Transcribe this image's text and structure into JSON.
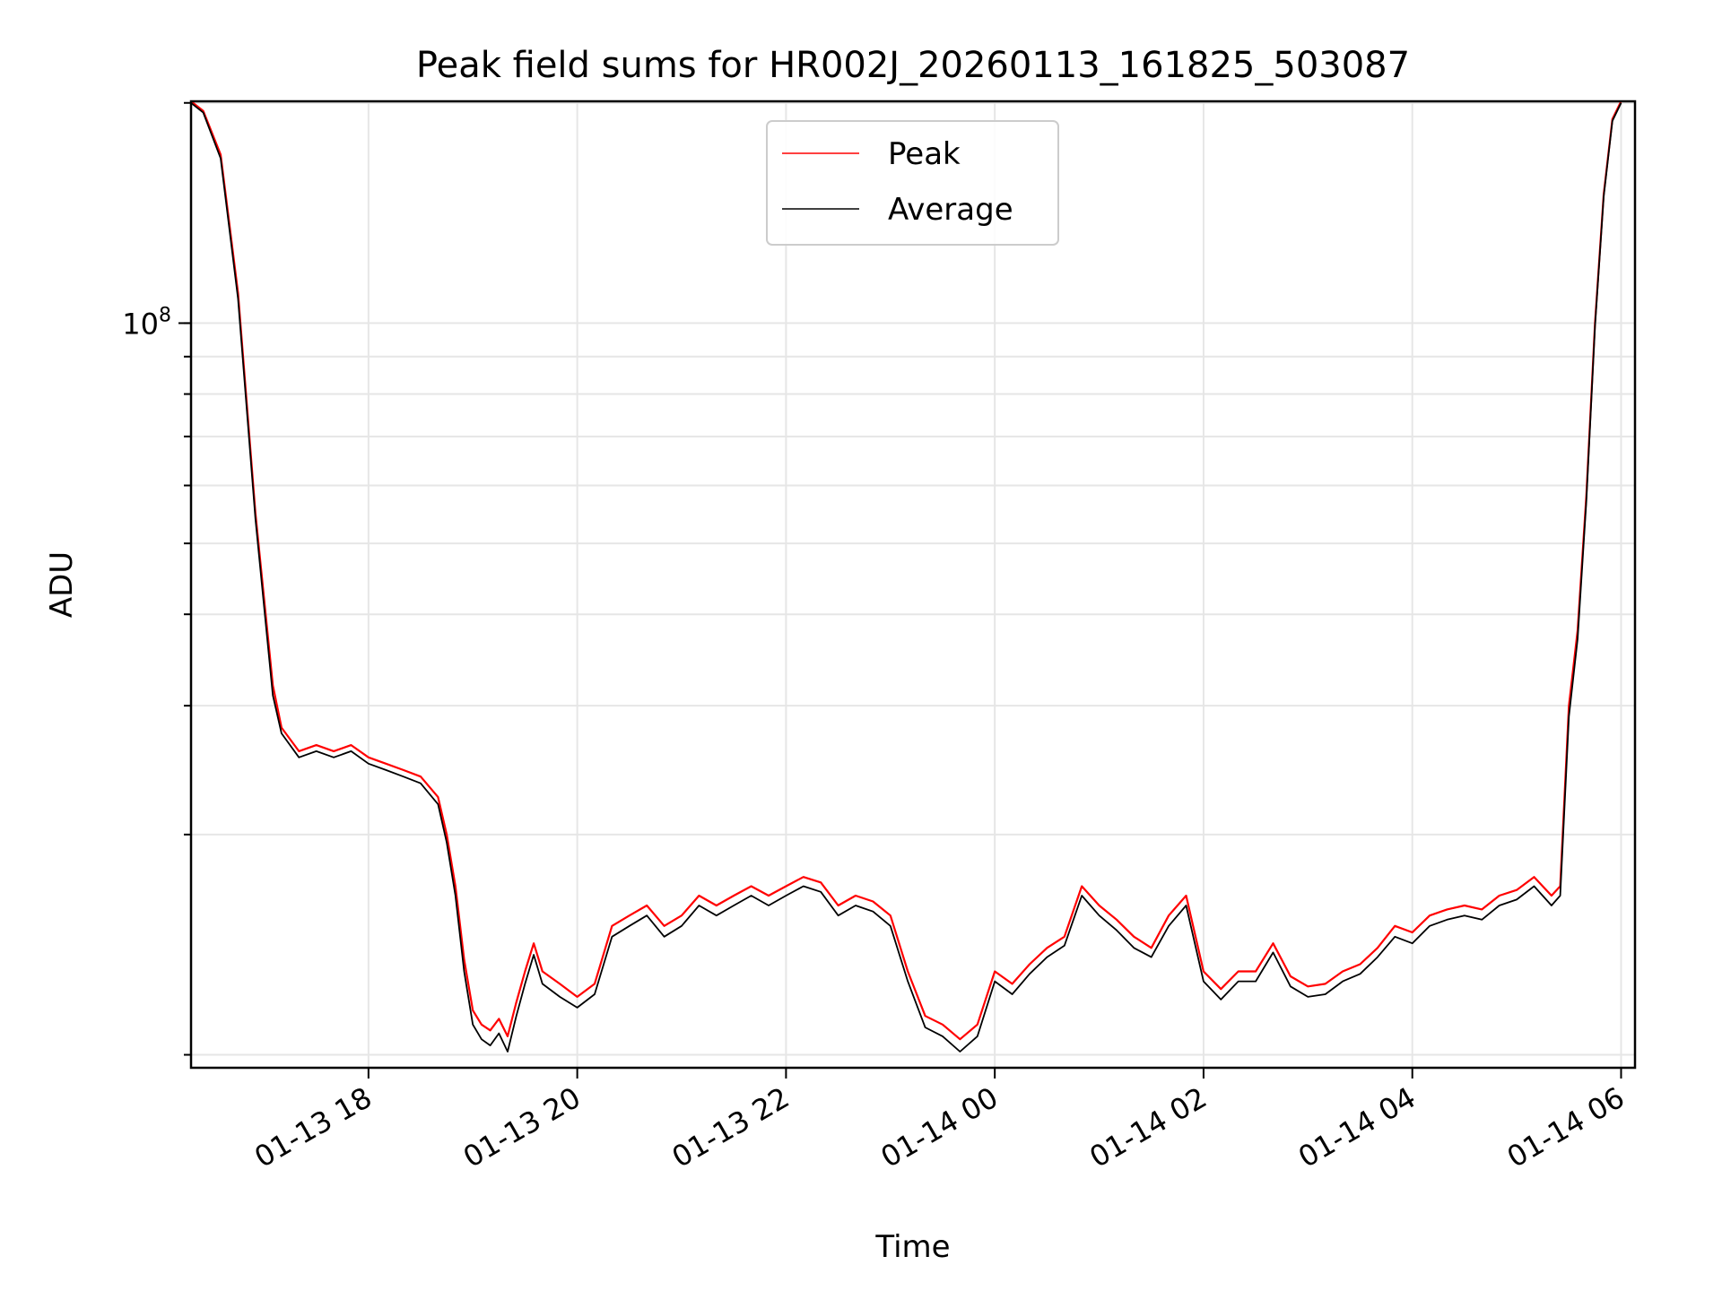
{
  "chart_data": {
    "type": "line",
    "title": "Peak field sums for HR002J_20260113_161825_503087",
    "xlabel": "Time",
    "ylabel": "ADU",
    "yscale": "log",
    "grid": true,
    "legend_position": "top-center",
    "x_range": [
      "2026-01-13 16:18",
      "2026-01-14 06:08"
    ],
    "ylim": [
      9600000,
      201000000
    ],
    "x_ticks": [
      {
        "value": "2026-01-13 18:00",
        "label": "01-13 18"
      },
      {
        "value": "2026-01-13 20:00",
        "label": "01-13 20"
      },
      {
        "value": "2026-01-13 22:00",
        "label": "01-13 22"
      },
      {
        "value": "2026-01-14 00:00",
        "label": "01-14 00"
      },
      {
        "value": "2026-01-14 02:00",
        "label": "01-14 02"
      },
      {
        "value": "2026-01-14 04:00",
        "label": "01-14 04"
      },
      {
        "value": "2026-01-14 06:00",
        "label": "01-14 06"
      }
    ],
    "y_major_ticks": [
      {
        "value": 100000000,
        "base": "10",
        "exponent": "8"
      }
    ],
    "series": [
      {
        "name": "Peak",
        "color": "#ff0000",
        "x": [
          "2026-01-13 16:18",
          "2026-01-13 16:25",
          "2026-01-13 16:35",
          "2026-01-13 16:45",
          "2026-01-13 16:55",
          "2026-01-13 17:05",
          "2026-01-13 17:10",
          "2026-01-13 17:20",
          "2026-01-13 17:30",
          "2026-01-13 17:40",
          "2026-01-13 17:50",
          "2026-01-13 18:00",
          "2026-01-13 18:10",
          "2026-01-13 18:20",
          "2026-01-13 18:30",
          "2026-01-13 18:40",
          "2026-01-13 18:45",
          "2026-01-13 18:50",
          "2026-01-13 18:55",
          "2026-01-13 19:00",
          "2026-01-13 19:05",
          "2026-01-13 19:10",
          "2026-01-13 19:15",
          "2026-01-13 19:20",
          "2026-01-13 19:25",
          "2026-01-13 19:30",
          "2026-01-13 19:35",
          "2026-01-13 19:40",
          "2026-01-13 19:50",
          "2026-01-13 20:00",
          "2026-01-13 20:10",
          "2026-01-13 20:20",
          "2026-01-13 20:30",
          "2026-01-13 20:40",
          "2026-01-13 20:50",
          "2026-01-13 21:00",
          "2026-01-13 21:10",
          "2026-01-13 21:20",
          "2026-01-13 21:30",
          "2026-01-13 21:40",
          "2026-01-13 21:50",
          "2026-01-13 22:00",
          "2026-01-13 22:10",
          "2026-01-13 22:20",
          "2026-01-13 22:30",
          "2026-01-13 22:40",
          "2026-01-13 22:50",
          "2026-01-13 23:00",
          "2026-01-13 23:10",
          "2026-01-13 23:20",
          "2026-01-13 23:30",
          "2026-01-13 23:40",
          "2026-01-13 23:50",
          "2026-01-14 00:00",
          "2026-01-14 00:10",
          "2026-01-14 00:20",
          "2026-01-14 00:30",
          "2026-01-14 00:40",
          "2026-01-14 00:50",
          "2026-01-14 01:00",
          "2026-01-14 01:10",
          "2026-01-14 01:20",
          "2026-01-14 01:30",
          "2026-01-14 01:40",
          "2026-01-14 01:50",
          "2026-01-14 02:00",
          "2026-01-14 02:10",
          "2026-01-14 02:20",
          "2026-01-14 02:30",
          "2026-01-14 02:40",
          "2026-01-14 02:50",
          "2026-01-14 03:00",
          "2026-01-14 03:10",
          "2026-01-14 03:20",
          "2026-01-14 03:30",
          "2026-01-14 03:40",
          "2026-01-14 03:50",
          "2026-01-14 04:00",
          "2026-01-14 04:10",
          "2026-01-14 04:20",
          "2026-01-14 04:30",
          "2026-01-14 04:40",
          "2026-01-14 04:50",
          "2026-01-14 05:00",
          "2026-01-14 05:10",
          "2026-01-14 05:20",
          "2026-01-14 05:25",
          "2026-01-14 05:30",
          "2026-01-14 05:35",
          "2026-01-14 05:40",
          "2026-01-14 05:45",
          "2026-01-14 05:50",
          "2026-01-14 05:55",
          "2026-01-14 06:00"
        ],
        "values": [
          201000000,
          195000000,
          170000000,
          110000000,
          55000000,
          32000000,
          28000000,
          26000000,
          26500000,
          26000000,
          26500000,
          25500000,
          25000000,
          24500000,
          24000000,
          22500000,
          20000000,
          17000000,
          13500000,
          11500000,
          11000000,
          10800000,
          11200000,
          10600000,
          11800000,
          13000000,
          14200000,
          13000000,
          12500000,
          12000000,
          12500000,
          15000000,
          15500000,
          16000000,
          15000000,
          15500000,
          16500000,
          16000000,
          16500000,
          17000000,
          16500000,
          17000000,
          17500000,
          17200000,
          16000000,
          16500000,
          16200000,
          15500000,
          13000000,
          11300000,
          11000000,
          10500000,
          11000000,
          13000000,
          12500000,
          13300000,
          14000000,
          14500000,
          17000000,
          16000000,
          15300000,
          14500000,
          14000000,
          15500000,
          16500000,
          13000000,
          12300000,
          13000000,
          13000000,
          14200000,
          12800000,
          12400000,
          12500000,
          13000000,
          13300000,
          14000000,
          15000000,
          14700000,
          15500000,
          15800000,
          16000000,
          15800000,
          16500000,
          16800000,
          17500000,
          16500000,
          17000000,
          30000000,
          38000000,
          58000000,
          100000000,
          150000000,
          190000000,
          201000000
        ]
      },
      {
        "name": "Average",
        "color": "#000000",
        "x": [
          "2026-01-13 16:18",
          "2026-01-13 16:25",
          "2026-01-13 16:35",
          "2026-01-13 16:45",
          "2026-01-13 16:55",
          "2026-01-13 17:05",
          "2026-01-13 17:10",
          "2026-01-13 17:20",
          "2026-01-13 17:30",
          "2026-01-13 17:40",
          "2026-01-13 17:50",
          "2026-01-13 18:00",
          "2026-01-13 18:10",
          "2026-01-13 18:20",
          "2026-01-13 18:30",
          "2026-01-13 18:40",
          "2026-01-13 18:45",
          "2026-01-13 18:50",
          "2026-01-13 18:55",
          "2026-01-13 19:00",
          "2026-01-13 19:05",
          "2026-01-13 19:10",
          "2026-01-13 19:15",
          "2026-01-13 19:20",
          "2026-01-13 19:25",
          "2026-01-13 19:30",
          "2026-01-13 19:35",
          "2026-01-13 19:40",
          "2026-01-13 19:50",
          "2026-01-13 20:00",
          "2026-01-13 20:10",
          "2026-01-13 20:20",
          "2026-01-13 20:30",
          "2026-01-13 20:40",
          "2026-01-13 20:50",
          "2026-01-13 21:00",
          "2026-01-13 21:10",
          "2026-01-13 21:20",
          "2026-01-13 21:30",
          "2026-01-13 21:40",
          "2026-01-13 21:50",
          "2026-01-13 22:00",
          "2026-01-13 22:10",
          "2026-01-13 22:20",
          "2026-01-13 22:30",
          "2026-01-13 22:40",
          "2026-01-13 22:50",
          "2026-01-13 23:00",
          "2026-01-13 23:10",
          "2026-01-13 23:20",
          "2026-01-13 23:30",
          "2026-01-13 23:40",
          "2026-01-13 23:50",
          "2026-01-14 00:00",
          "2026-01-14 00:10",
          "2026-01-14 00:20",
          "2026-01-14 00:30",
          "2026-01-14 00:40",
          "2026-01-14 00:50",
          "2026-01-14 01:00",
          "2026-01-14 01:10",
          "2026-01-14 01:20",
          "2026-01-14 01:30",
          "2026-01-14 01:40",
          "2026-01-14 01:50",
          "2026-01-14 02:00",
          "2026-01-14 02:10",
          "2026-01-14 02:20",
          "2026-01-14 02:30",
          "2026-01-14 02:40",
          "2026-01-14 02:50",
          "2026-01-14 03:00",
          "2026-01-14 03:10",
          "2026-01-14 03:20",
          "2026-01-14 03:30",
          "2026-01-14 03:40",
          "2026-01-14 03:50",
          "2026-01-14 04:00",
          "2026-01-14 04:10",
          "2026-01-14 04:20",
          "2026-01-14 04:30",
          "2026-01-14 04:40",
          "2026-01-14 04:50",
          "2026-01-14 05:00",
          "2026-01-14 05:10",
          "2026-01-14 05:20",
          "2026-01-14 05:25",
          "2026-01-14 05:30",
          "2026-01-14 05:35",
          "2026-01-14 05:40",
          "2026-01-14 05:45",
          "2026-01-14 05:50",
          "2026-01-14 05:55",
          "2026-01-14 06:00"
        ],
        "values": [
          200000000,
          194000000,
          168000000,
          108000000,
          54000000,
          31000000,
          27500000,
          25500000,
          26000000,
          25500000,
          26000000,
          25000000,
          24500000,
          24000000,
          23500000,
          22000000,
          19500000,
          16500000,
          13000000,
          11000000,
          10500000,
          10300000,
          10700000,
          10100000,
          11300000,
          12500000,
          13700000,
          12500000,
          12000000,
          11600000,
          12100000,
          14500000,
          15000000,
          15500000,
          14500000,
          15000000,
          16000000,
          15500000,
          16000000,
          16500000,
          16000000,
          16500000,
          17000000,
          16700000,
          15500000,
          16000000,
          15700000,
          15000000,
          12600000,
          10900000,
          10600000,
          10100000,
          10600000,
          12600000,
          12100000,
          12900000,
          13600000,
          14100000,
          16500000,
          15500000,
          14800000,
          14000000,
          13600000,
          15000000,
          16000000,
          12600000,
          11900000,
          12600000,
          12600000,
          13800000,
          12400000,
          12000000,
          12100000,
          12600000,
          12900000,
          13600000,
          14500000,
          14200000,
          15000000,
          15300000,
          15500000,
          15300000,
          16000000,
          16300000,
          17000000,
          16000000,
          16500000,
          29000000,
          37000000,
          57000000,
          99000000,
          149000000,
          189000000,
          200000000
        ]
      }
    ]
  }
}
